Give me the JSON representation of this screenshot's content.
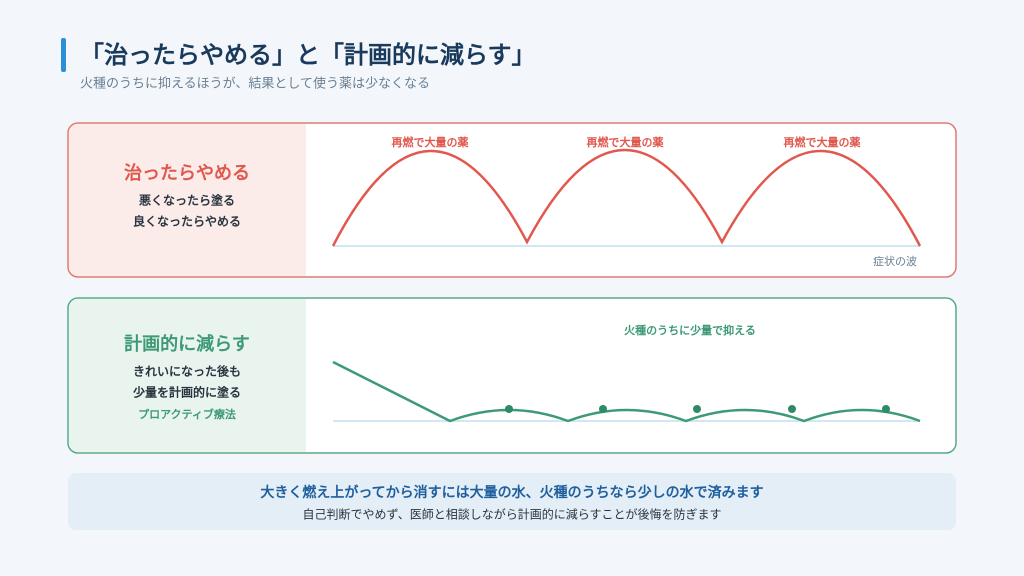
{
  "header": {
    "title": "「治ったらやめる」と「計画的に減らす」",
    "subtitle": "火種のうちに抑えるほうが、結果として使う薬は少なくなる"
  },
  "panels": [
    {
      "title": "治ったらやめる",
      "lines": [
        "悪くなったら塗る",
        "良くなったらやめる"
      ],
      "annotations": [
        "再燃で大量の薬",
        "再燃で大量の薬",
        "再燃で大量の薬"
      ],
      "axis_label": "症状の波"
    },
    {
      "title": "計画的に減らす",
      "lines": [
        "きれいになった後も",
        "少量を計画的に塗る"
      ],
      "tag": "プロアクティブ療法",
      "annotation": "火種のうちに少量で抑える"
    }
  ],
  "footer": {
    "main": "大きく燃え上がってから消すには大量の水、火種のうちなら少しの水で済みます",
    "sub": "自己判断でやめず、医師と相談しながら計画的に減らすことが後悔を防ぎます"
  }
}
